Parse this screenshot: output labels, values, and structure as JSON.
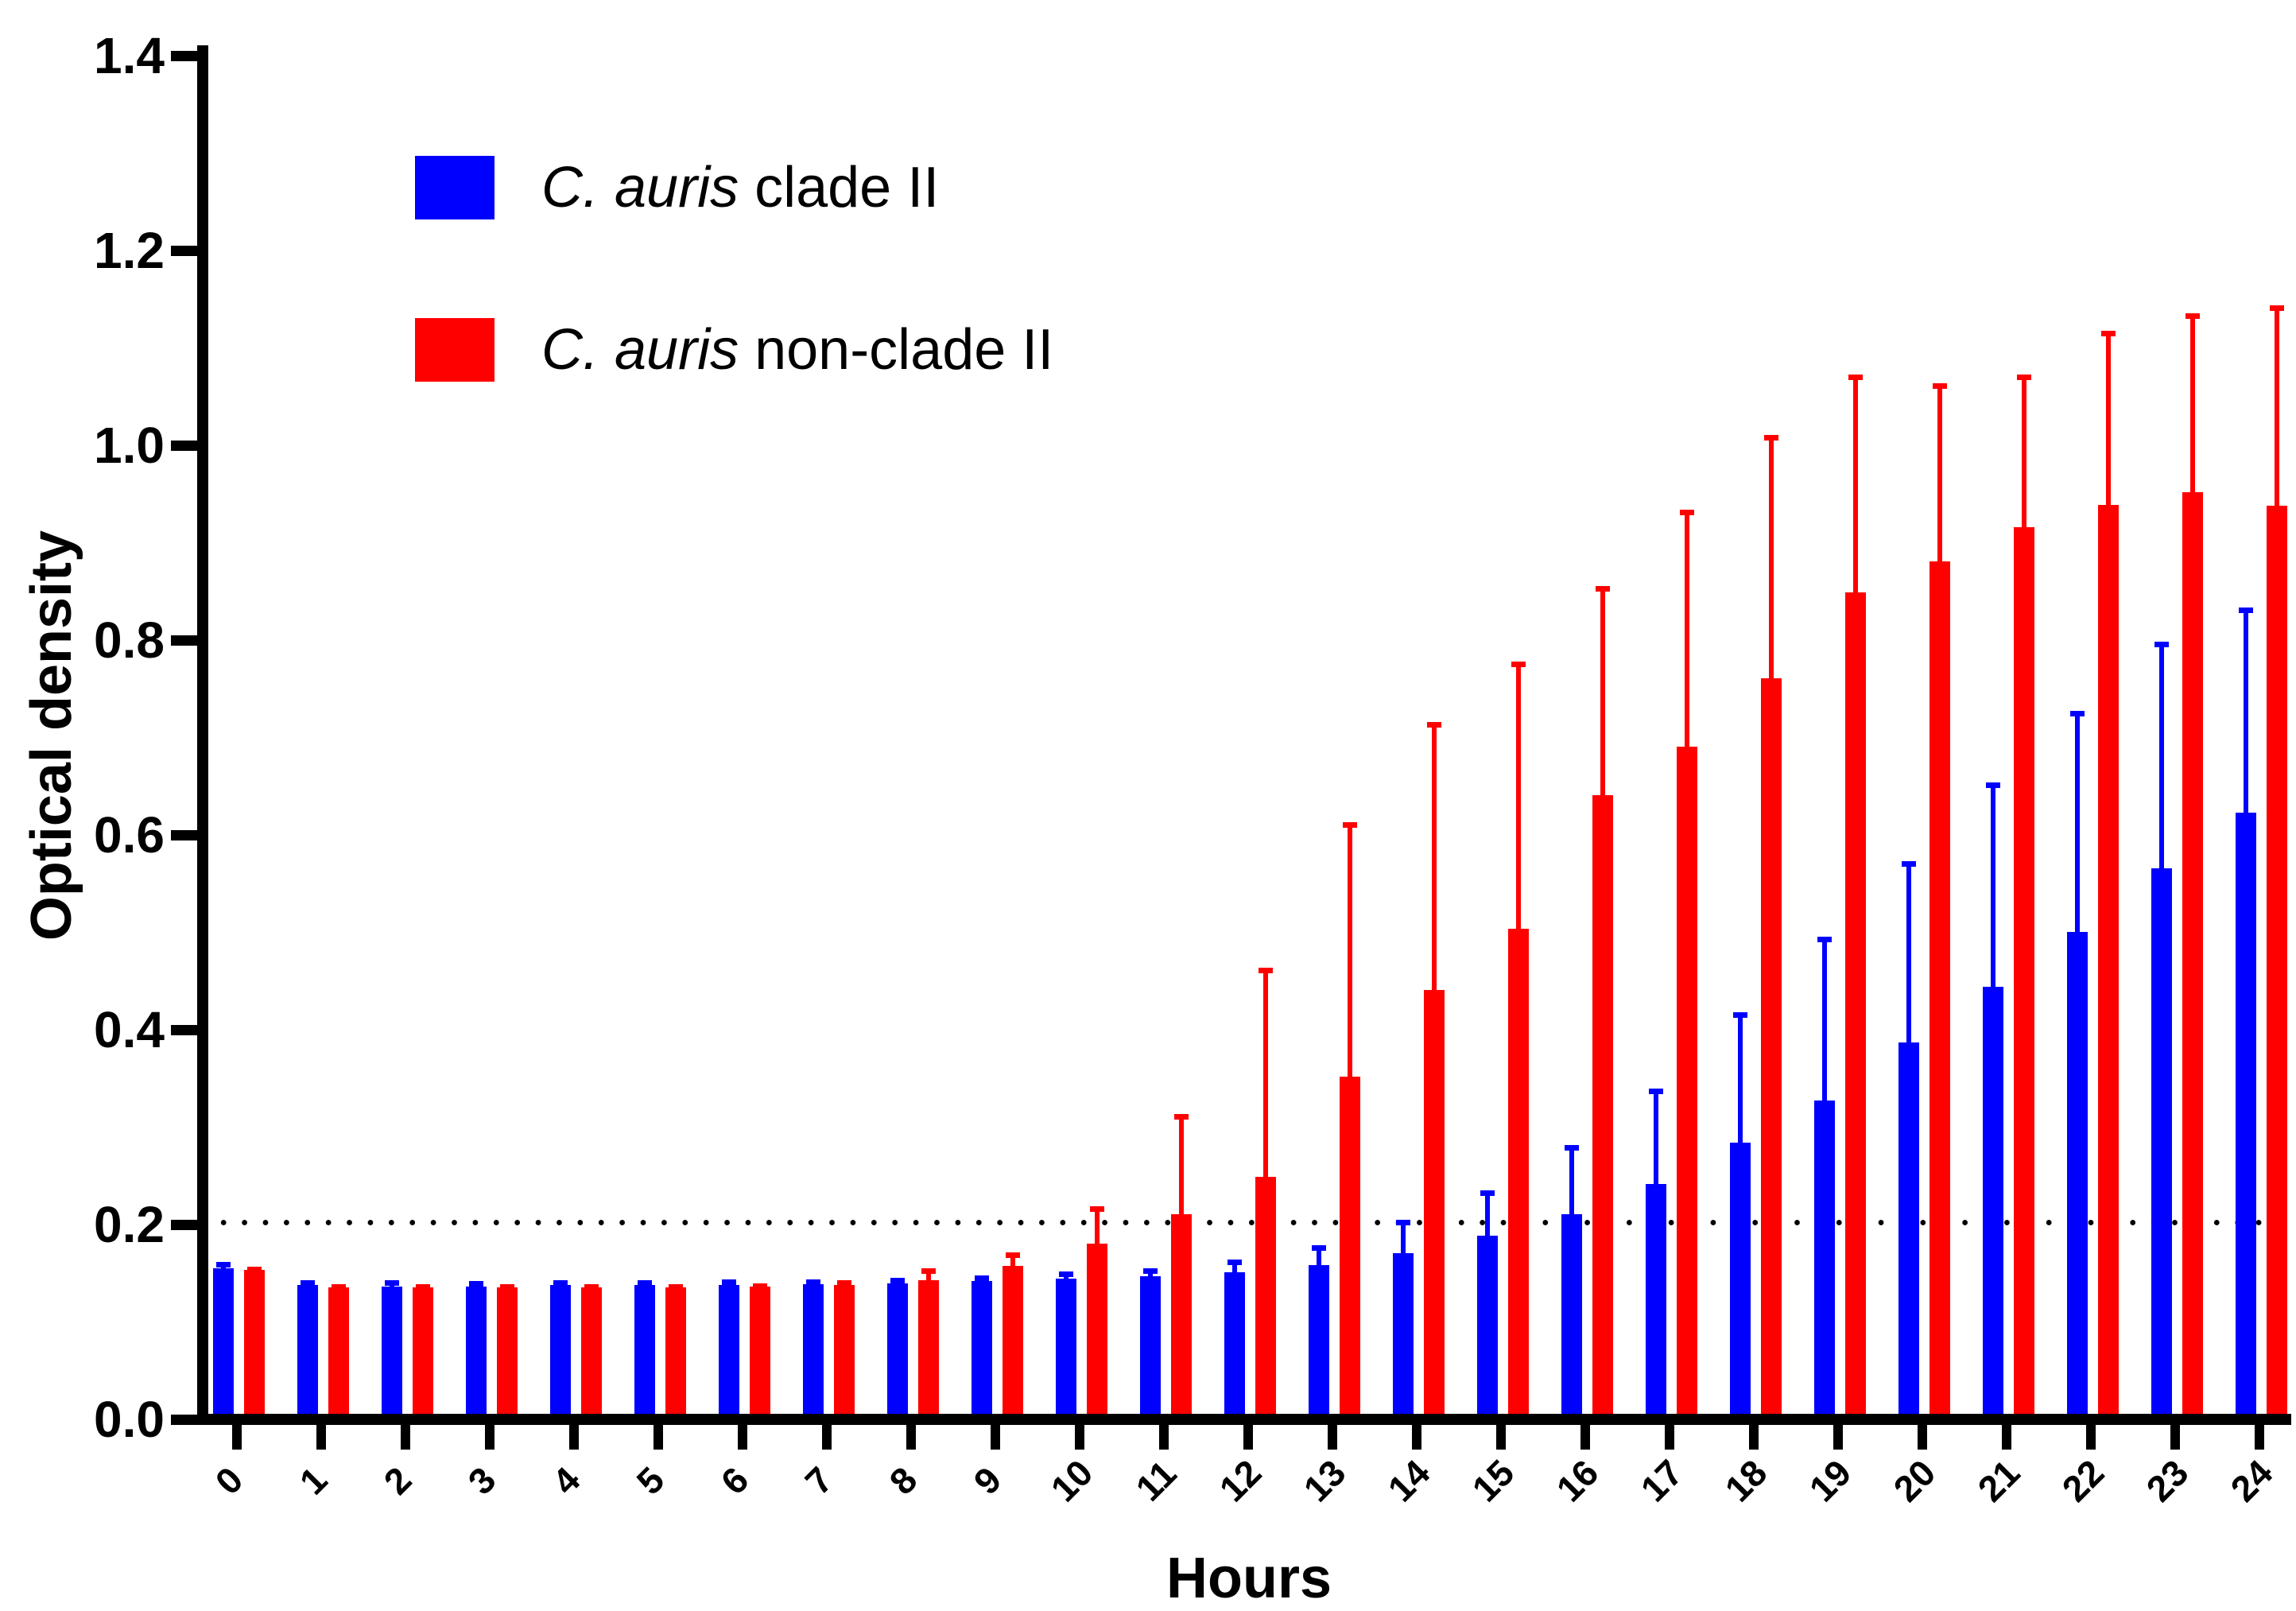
{
  "chart_data": {
    "type": "bar",
    "title": "",
    "xlabel": "Hours",
    "ylabel": "Optical density",
    "categories": [
      "0",
      "1",
      "2",
      "3",
      "4",
      "5",
      "6",
      "7",
      "8",
      "9",
      "10",
      "11",
      "12",
      "13",
      "14",
      "15",
      "16",
      "17",
      "18",
      "19",
      "20",
      "21",
      "22",
      "23",
      "24"
    ],
    "ylim": [
      0,
      1.4
    ],
    "yticks": [
      "0.0",
      "0.2",
      "0.4",
      "0.6",
      "0.8",
      "1.0",
      "1.2",
      "1.4"
    ],
    "ytick_values": [
      0,
      0.2,
      0.4,
      0.6,
      0.8,
      1.0,
      1.2,
      1.4
    ],
    "grid": "off",
    "legend_position": "top-left-inside",
    "threshold_line": {
      "value": 0.2,
      "style": "dotted",
      "color": "#000000"
    },
    "axis_color": "#000000",
    "error_bars": "upper-sd",
    "series": [
      {
        "name": "C. auris clade II",
        "name_italic": "C. auris",
        "name_rest": " clade II",
        "color": "#0000ff",
        "values": [
          0.149,
          0.132,
          0.131,
          0.131,
          0.132,
          0.132,
          0.132,
          0.133,
          0.134,
          0.136,
          0.139,
          0.141,
          0.145,
          0.153,
          0.165,
          0.183,
          0.205,
          0.236,
          0.278,
          0.322,
          0.381,
          0.438,
          0.495,
          0.56,
          0.617
        ],
        "error_top": [
          0.156,
          0.137,
          0.137,
          0.136,
          0.137,
          0.137,
          0.138,
          0.138,
          0.14,
          0.142,
          0.146,
          0.149,
          0.158,
          0.173,
          0.199,
          0.229,
          0.276,
          0.334,
          0.412,
          0.49,
          0.567,
          0.648,
          0.722,
          0.793,
          0.828
        ]
      },
      {
        "name": "C. auris non-clade II",
        "name_italic": "C. auris",
        "name_rest": " non-clade II",
        "color": "#ff0000",
        "values": [
          0.148,
          0.13,
          0.13,
          0.13,
          0.13,
          0.13,
          0.131,
          0.132,
          0.137,
          0.152,
          0.175,
          0.205,
          0.243,
          0.346,
          0.435,
          0.498,
          0.635,
          0.685,
          0.755,
          0.843,
          0.875,
          0.91,
          0.933,
          0.946,
          0.932
        ],
        "error_top": [
          0.151,
          0.133,
          0.133,
          0.133,
          0.133,
          0.133,
          0.134,
          0.137,
          0.149,
          0.166,
          0.213,
          0.308,
          0.458,
          0.607,
          0.71,
          0.772,
          0.85,
          0.928,
          1.005,
          1.067,
          1.058,
          1.067,
          1.112,
          1.13,
          1.138
        ]
      }
    ]
  }
}
